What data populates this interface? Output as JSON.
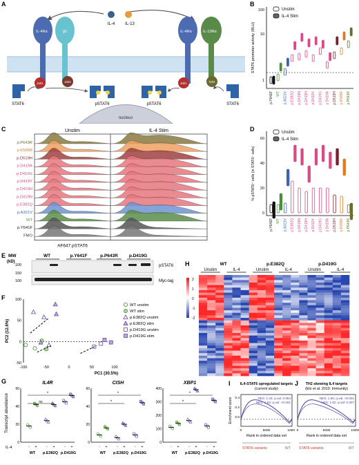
{
  "panel_letters": {
    "a": "A",
    "b": "B",
    "c": "C",
    "d": "D",
    "e": "E",
    "f": "F",
    "g": "G",
    "h": "H",
    "i": "I",
    "j": "J"
  },
  "colors": {
    "wt": "#4a8f3b",
    "y641f": "#111111",
    "a321v": "#3c63b5",
    "red": "#e0455a",
    "orange": "#e07a1f",
    "darkred": "#7a1f2a",
    "pink": "#d94a86",
    "olive": "#6b6f2b",
    "purple": "#6c4aa0",
    "heat_high": "#e02020",
    "heat_low": "#2a3fb0",
    "gsea_line": "#4b43a8"
  },
  "panel_a": {
    "il4ra_left": "IL-4Rα",
    "yc": "γc",
    "il4": "IL-4",
    "il13": "IL-13",
    "il4ra_right": "IL-4Rα",
    "il13ra": "IL-13Rα",
    "jak1_left": "Jak1",
    "jak3": "Jak3",
    "jak1_right": "Jak1",
    "tyk2": "Tyk2",
    "stat6_l": "STAT6",
    "pstat6_l": "pSTAT6",
    "pstat6_r": "pSTAT6",
    "stat6_r": "STAT6",
    "nucleus": "nucleus"
  },
  "panel_b": {
    "legend_unstim": "Unstim",
    "legend_stim": "IL-4 Stim",
    "ylabel": "STAT6 promoter activity (RLU)",
    "yticks": [
      "100",
      "10",
      "1"
    ]
  },
  "panel_c": {
    "title_unstim": "Unstim",
    "title_stim": "IL-4 Stim",
    "xlabel": "AF647 pSTAT6"
  },
  "panel_d": {
    "legend_unstim": "Unstim",
    "legend_stim": "IL-4 Stim",
    "ylabel": "% pSTAT6⁺ cells (in STAT6⁺ cells)",
    "yticks": [
      "60",
      "40",
      "20",
      "0"
    ]
  },
  "panel_e": {
    "mw": "MW",
    "kd": "(kD)",
    "groups": [
      "WT",
      "p.Y641F",
      "p.P643R",
      "p.D419G"
    ],
    "mw_marks": [
      "100",
      "150",
      "100"
    ],
    "band1": "pSTAT6",
    "band2": "Myc-tag"
  },
  "panel_f": {
    "xlabel": "PC1 (30.5%)",
    "ylabel": "PC2 (12.6%)",
    "xticks": [
      "-100",
      "-50",
      "0",
      "50",
      "100"
    ],
    "yticks": [
      "100",
      "50",
      "0",
      "-50"
    ],
    "legend": [
      "WT unstim",
      "WT stim",
      "p.E382Q unstim",
      "p.E382Q stim",
      "p.D419G unstim",
      "p.D419G stim"
    ]
  },
  "panel_g": {
    "ylabel": "Transcript abundance",
    "genes": [
      "IL4R",
      "CISH",
      "XBP1"
    ],
    "il4_label": "IL-4",
    "minus": "-",
    "plus": "+",
    "groups": [
      "WT",
      "p.E382Q",
      "p.D419G"
    ],
    "ns": "ns",
    "star": "*",
    "yticks_il4r": [
      "60",
      "40",
      "20",
      "0"
    ],
    "yticks_cish": [
      "60",
      "40",
      "20",
      "0"
    ],
    "yticks_xbp1": [
      "400",
      "300",
      "200",
      "100",
      "0"
    ]
  },
  "panel_h": {
    "groups": [
      "WT",
      "p.E382Q",
      "p.D419G"
    ],
    "sub": [
      "Unstim",
      "IL-4",
      "Unstim",
      "IL-4",
      "Unstim",
      "IL-4"
    ],
    "scale": [
      "2",
      "1",
      "0",
      "-1",
      "-2"
    ]
  },
  "panel_i": {
    "title1": "IL4-STAT6 upregulated targets",
    "title2": "(current study)",
    "nes1": "NES: 1.34; q-val: 0.084",
    "nes2": "NES: 1.83; q-val: <0.001",
    "ylabel": "Enrichment score",
    "xlabel": "Rank in ordered data set",
    "left": "STAT6 variants",
    "right": "WT",
    "xticks": [
      "0",
      "5000",
      "10000"
    ],
    "yticks": [
      "0.4",
      "0.2",
      "0.0"
    ]
  },
  "panel_j": {
    "title1": "TH2 skewing IL4 targets",
    "title2": "(Elo et al. 2010. Immunity)",
    "nes1": "NES: 1.66; q-val: <0.001",
    "nes2": "NES: 1.52; q-val: 0.007",
    "xlabel": "Rank in ordered data set",
    "left": "STAT6 variants",
    "right": "WT",
    "xticks": [
      "0",
      "5000",
      "10000"
    ]
  },
  "variants_b": [
    "p.Y641F",
    "WT",
    "p.A321V",
    "p.E382Q",
    "p.D419N",
    "p.D419H",
    "p.D419Y",
    "p.D419G",
    "p.D419A",
    "p.D519H",
    "p.K595R",
    "p.P643R"
  ],
  "variants_c": [
    "p.P643R",
    "p.K595R",
    "p.D519H",
    "p.D419A",
    "p.D419G",
    "p.D419Y",
    "p.D419H",
    "p.D419N",
    "p.E382Q",
    "p.A321V",
    "WT",
    "p.Y641F",
    "FMO"
  ],
  "variants_d": [
    "p.Y641F",
    "WT",
    "p.A321V",
    "p.E382Q",
    "p.D419N",
    "p.D419H",
    "p.D419Y",
    "p.D419G",
    "p.D419A",
    "p.D519H",
    "p.K595R",
    "p.P643R"
  ]
}
